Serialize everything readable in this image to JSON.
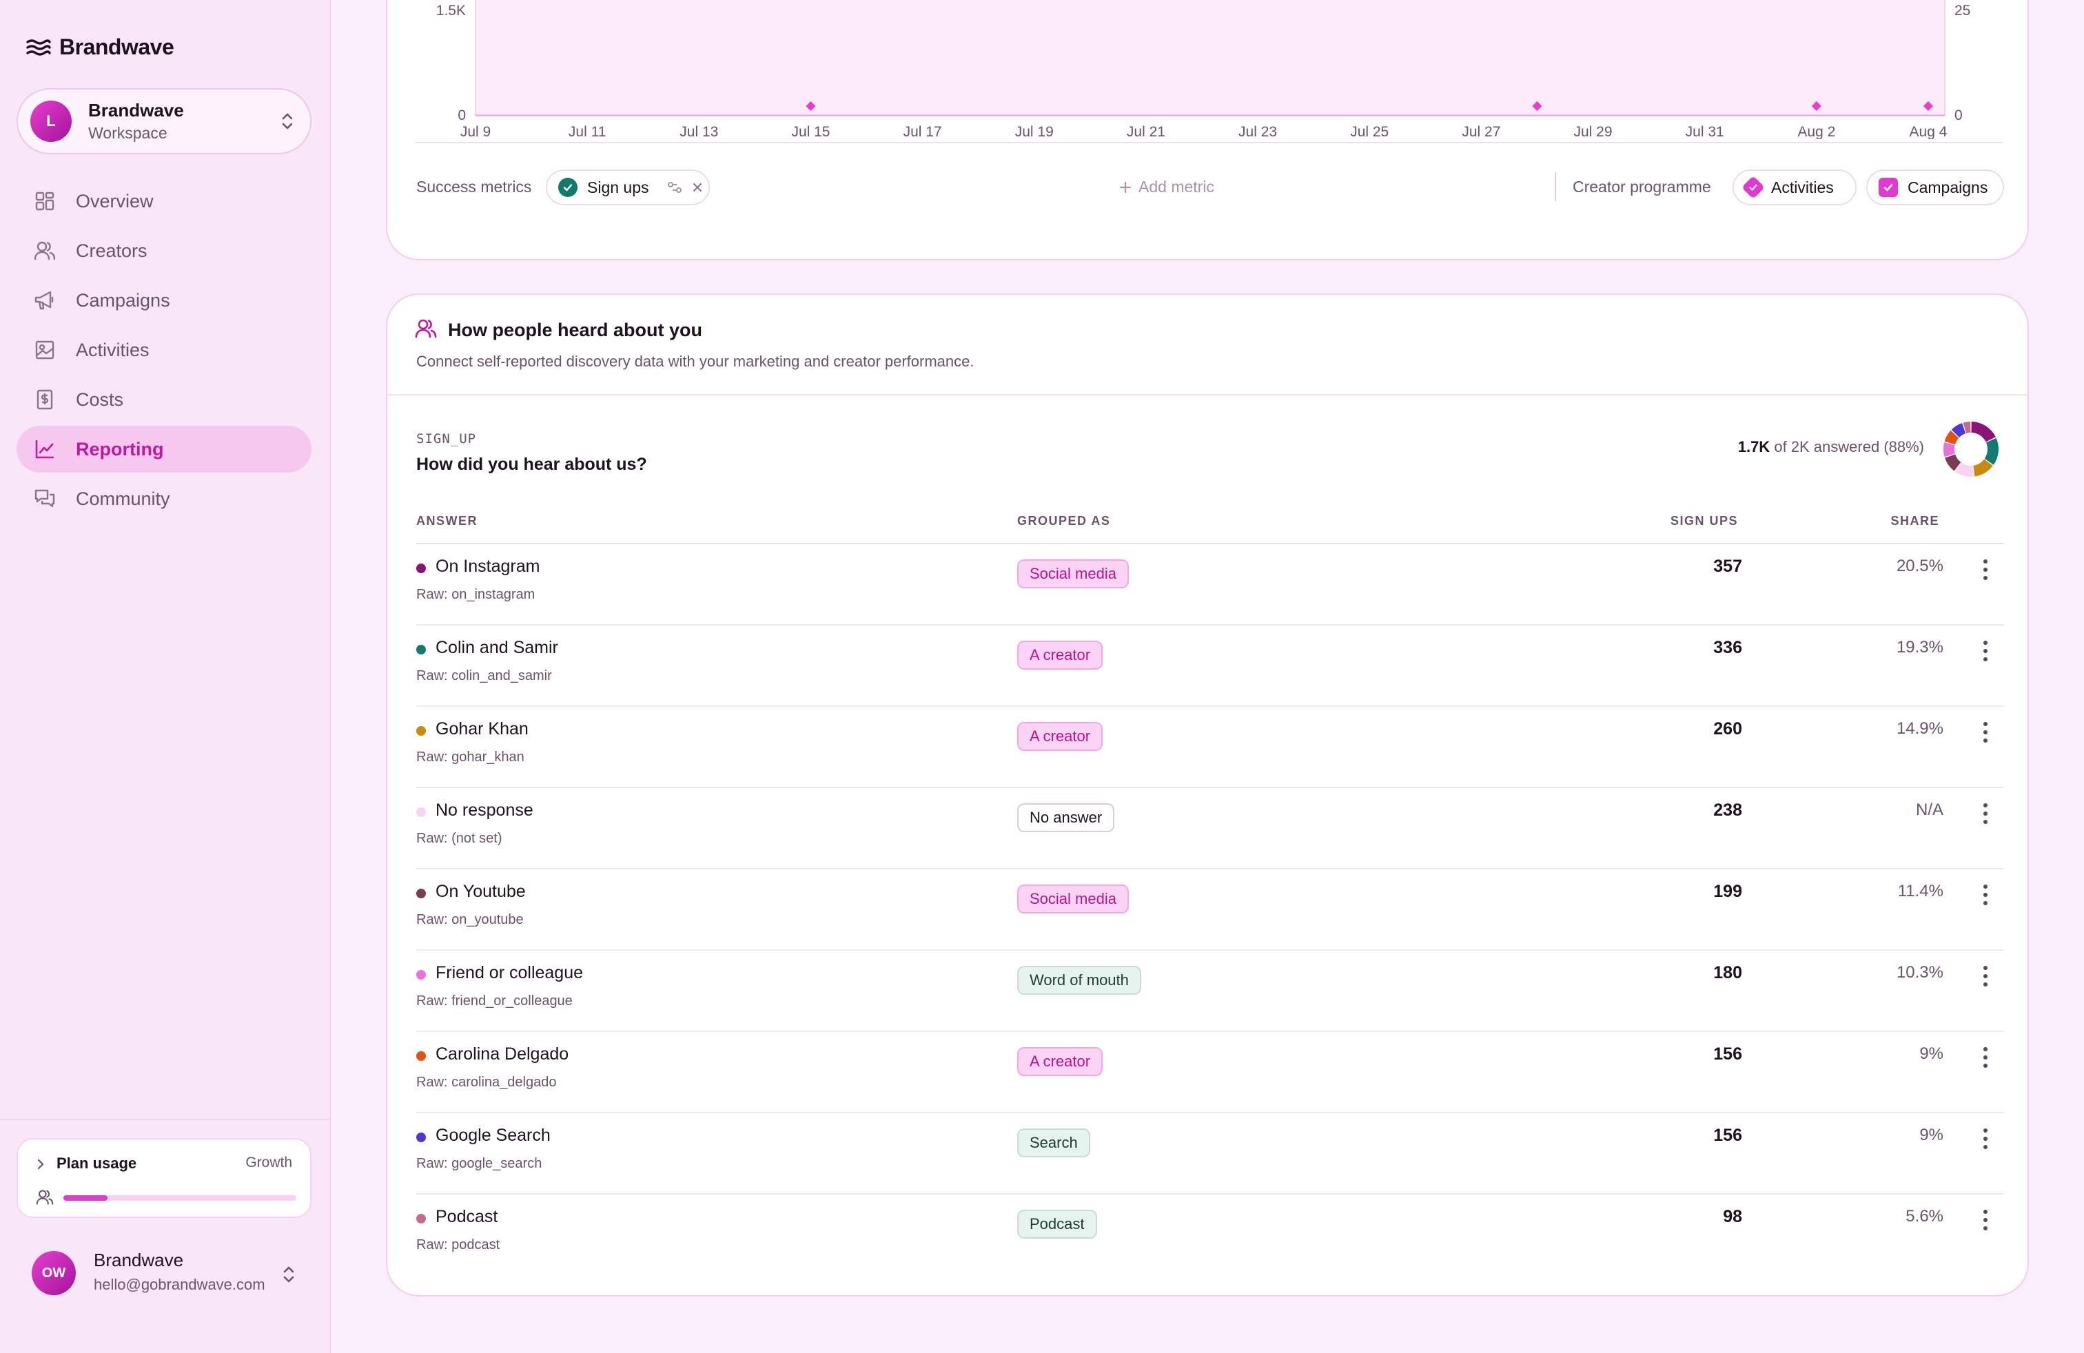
{
  "brand": {
    "name": "Brandwave"
  },
  "workspace": {
    "avatar_letter": "L",
    "name": "Brandwave",
    "subtitle": "Workspace"
  },
  "sidebar": {
    "items": [
      {
        "label": "Overview",
        "icon": "grid-icon",
        "active": false
      },
      {
        "label": "Creators",
        "icon": "users-icon",
        "active": false
      },
      {
        "label": "Campaigns",
        "icon": "megaphone-icon",
        "active": false
      },
      {
        "label": "Activities",
        "icon": "image-icon",
        "active": false
      },
      {
        "label": "Costs",
        "icon": "receipt-icon",
        "active": false
      },
      {
        "label": "Reporting",
        "icon": "chart-line-icon",
        "active": true
      },
      {
        "label": "Community",
        "icon": "chat-icon",
        "active": false
      }
    ],
    "plan": {
      "title": "Plan usage",
      "tier": "Growth",
      "usage_fraction": 0.19
    },
    "user": {
      "initials": "OW",
      "name": "Brandwave",
      "email": "hello@gobrandwave.com"
    }
  },
  "chart_data": {
    "type": "line",
    "x": [
      "Jul 9",
      "Jul 11",
      "Jul 13",
      "Jul 15",
      "Jul 17",
      "Jul 19",
      "Jul 21",
      "Jul 23",
      "Jul 25",
      "Jul 27",
      "Jul 29",
      "Jul 31",
      "Aug 2",
      "Aug 4"
    ],
    "y_left_ticks": [
      "1.5K",
      "0"
    ],
    "y_right_ticks": [
      "25",
      "0"
    ],
    "markers": [
      "Jul 15",
      "Jul 28",
      "Aug 2",
      "Aug 4"
    ],
    "accent": "#e63fd0"
  },
  "metrics": {
    "success_label": "Success metrics",
    "success_pill": "Sign ups",
    "add_label": "Add metric",
    "creator_label": "Creator programme",
    "activities_label": "Activities",
    "campaigns_label": "Campaigns"
  },
  "survey": {
    "title": "How people heard about you",
    "description": "Connect self-reported discovery data with your marketing and creator performance.",
    "question_key": "SIGN_UP",
    "question": "How did you hear about us?",
    "answered_count": "1.7K",
    "answered_rest": "of 2K answered (88%)",
    "headers": {
      "answer": "ANSWER",
      "grouped": "GROUPED AS",
      "signups": "SIGN UPS",
      "share": "SHARE"
    },
    "rows": [
      {
        "name": "On Instagram",
        "raw": "Raw: on_instagram",
        "group": "Social media",
        "style": "pink",
        "signups": "357",
        "share": "20.5%",
        "color": "#8a1378"
      },
      {
        "name": "Colin and Samir",
        "raw": "Raw: colin_and_samir",
        "group": "A creator",
        "style": "pink",
        "signups": "336",
        "share": "19.3%",
        "color": "#137a6f"
      },
      {
        "name": "Gohar Khan",
        "raw": "Raw: gohar_khan",
        "group": "A creator",
        "style": "pink",
        "signups": "260",
        "share": "14.9%",
        "color": "#c98a10"
      },
      {
        "name": "No response",
        "raw": "Raw: (not set)",
        "group": "No answer",
        "style": "white",
        "signups": "238",
        "share": "N/A",
        "color": "#f8d3f2"
      },
      {
        "name": "On Youtube",
        "raw": "Raw: on_youtube",
        "group": "Social media",
        "style": "pink",
        "signups": "199",
        "share": "11.4%",
        "color": "#7b3b54"
      },
      {
        "name": "Friend or colleague",
        "raw": "Raw: friend_or_colleague",
        "group": "Word of mouth",
        "style": "green",
        "signups": "180",
        "share": "10.3%",
        "color": "#e872d8"
      },
      {
        "name": "Carolina Delgado",
        "raw": "Raw: carolina_delgado",
        "group": "A creator",
        "style": "pink",
        "signups": "156",
        "share": "9%",
        "color": "#e25312"
      },
      {
        "name": "Google Search",
        "raw": "Raw: google_search",
        "group": "Search",
        "style": "green",
        "signups": "156",
        "share": "9%",
        "color": "#4d37d8"
      },
      {
        "name": "Podcast",
        "raw": "Raw: podcast",
        "group": "Podcast",
        "style": "green",
        "signups": "98",
        "share": "5.6%",
        "color": "#c7698f"
      }
    ]
  }
}
